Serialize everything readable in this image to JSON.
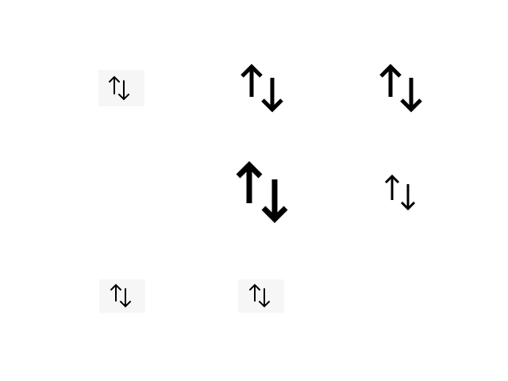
{
  "icons": [
    {
      "name": "sort-arrows-icon",
      "glyph": "up-down-arrows",
      "variant": "small-on-light-background"
    },
    {
      "name": "sort-arrows-icon",
      "glyph": "up-down-arrows",
      "variant": "large-bold"
    },
    {
      "name": "sort-arrows-icon",
      "glyph": "up-down-arrows",
      "variant": "large-bold"
    },
    {
      "name": "sort-arrows-icon",
      "glyph": "up-down-arrows",
      "variant": "extra-large-bold"
    },
    {
      "name": "sort-arrows-icon",
      "glyph": "up-down-arrows",
      "variant": "medium"
    },
    {
      "name": "sort-arrows-icon",
      "glyph": "up-down-arrows",
      "variant": "small-on-light-background"
    },
    {
      "name": "sort-arrows-icon",
      "glyph": "up-down-arrows",
      "variant": "small-on-light-background"
    }
  ],
  "colors": {
    "icon": "#000000",
    "tile_background": "#f6f6f6",
    "page_background": "#ffffff"
  }
}
